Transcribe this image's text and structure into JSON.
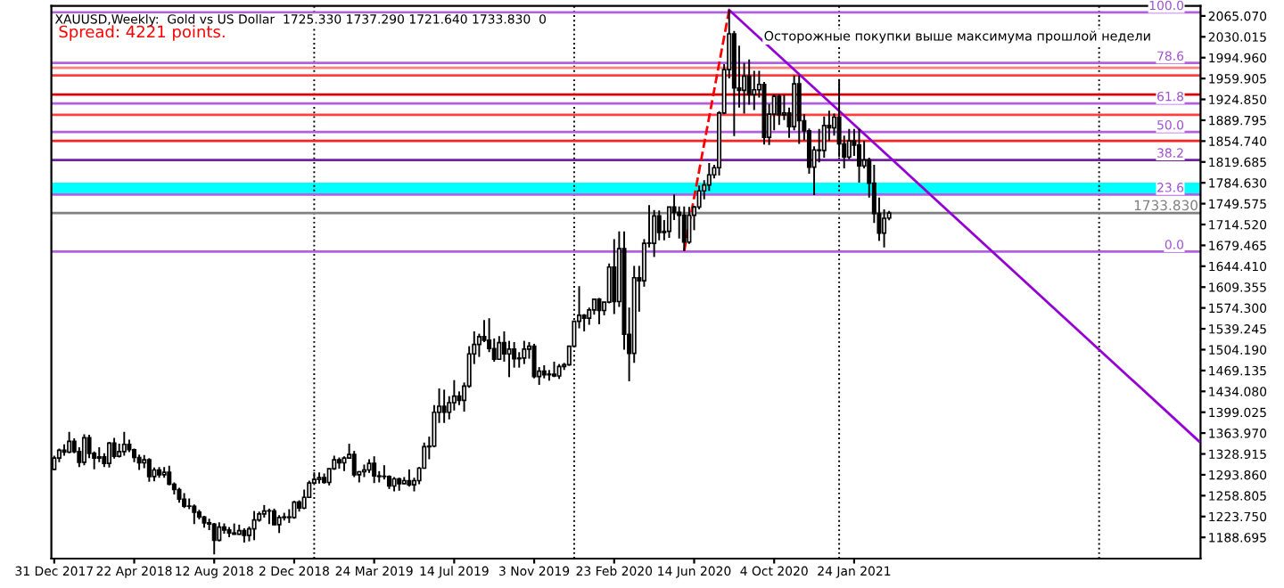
{
  "chart_data": {
    "type": "candlestick",
    "title": "XAUUSD,Weekly:  Gold vs US Dollar  1725.330 1737.290 1721.640 1733.830  0",
    "annotations": [
      "Spread: 4221 points.",
      "Осторожные покупки выше максимума прошлой недели",
      {
        "text": "100.0",
        "x": "2022-05-01",
        "y": 2071
      },
      {
        "text": "78.6",
        "x": "2022-05-01",
        "y": 1986
      },
      {
        "text": "61.8",
        "x": "2022-05-01",
        "y": 1918
      },
      {
        "text": "50.0",
        "x": "2022-05-01",
        "y": 1870
      },
      {
        "text": "38.2",
        "x": "2022-05-01",
        "y": 1823
      },
      {
        "text": "23.6",
        "x": "2022-05-01",
        "y": 1765
      },
      {
        "text": "0.0",
        "x": "2022-05-01",
        "y": 1669
      }
    ],
    "x": [
      "2017-12-31",
      "2018-01-07",
      "2018-01-14",
      "2018-01-21",
      "2018-01-28",
      "2018-02-04",
      "2018-02-11",
      "2018-02-18",
      "2018-02-25",
      "2018-03-04",
      "2018-03-11",
      "2018-03-18",
      "2018-03-25",
      "2018-04-01",
      "2018-04-08",
      "2018-04-15",
      "2018-04-22",
      "2018-04-29",
      "2018-05-06",
      "2018-05-13",
      "2018-05-20",
      "2018-05-27",
      "2018-06-03",
      "2018-06-10",
      "2018-06-17",
      "2018-06-24",
      "2018-07-01",
      "2018-07-08",
      "2018-07-15",
      "2018-07-22",
      "2018-07-29",
      "2018-08-05",
      "2018-08-12",
      "2018-08-19",
      "2018-08-26",
      "2018-09-02",
      "2018-09-09",
      "2018-09-16",
      "2018-09-23",
      "2018-09-30",
      "2018-10-07",
      "2018-10-14",
      "2018-10-21",
      "2018-10-28",
      "2018-11-04",
      "2018-11-11",
      "2018-11-18",
      "2018-11-25",
      "2018-12-02",
      "2018-12-09",
      "2018-12-16",
      "2018-12-23",
      "2018-12-30",
      "2019-01-06",
      "2019-01-13",
      "2019-01-20",
      "2019-01-27",
      "2019-02-03",
      "2019-02-10",
      "2019-02-17",
      "2019-02-24",
      "2019-03-03",
      "2019-03-10",
      "2019-03-17",
      "2019-03-24",
      "2019-03-31",
      "2019-04-07",
      "2019-04-14",
      "2019-04-21",
      "2019-04-28",
      "2019-05-05",
      "2019-05-12",
      "2019-05-19",
      "2019-05-26",
      "2019-06-02",
      "2019-06-09",
      "2019-06-16",
      "2019-06-23",
      "2019-06-30",
      "2019-07-07",
      "2019-07-14",
      "2019-07-21",
      "2019-07-28",
      "2019-08-04",
      "2019-08-11",
      "2019-08-18",
      "2019-08-25",
      "2019-09-01",
      "2019-09-08",
      "2019-09-15",
      "2019-09-22",
      "2019-09-29",
      "2019-10-06",
      "2019-10-13",
      "2019-10-20",
      "2019-10-27",
      "2019-11-03",
      "2019-11-10",
      "2019-11-17",
      "2019-11-24",
      "2019-12-01",
      "2019-12-08",
      "2019-12-15",
      "2019-12-22",
      "2019-12-29",
      "2020-01-05",
      "2020-01-12",
      "2020-01-19",
      "2020-01-26",
      "2020-02-02",
      "2020-02-09",
      "2020-02-16",
      "2020-02-23",
      "2020-03-01",
      "2020-03-08",
      "2020-03-15",
      "2020-03-22",
      "2020-03-29",
      "2020-04-05",
      "2020-04-12",
      "2020-04-19",
      "2020-04-26",
      "2020-05-03",
      "2020-05-10",
      "2020-05-17",
      "2020-05-24",
      "2020-05-31",
      "2020-06-07",
      "2020-06-14",
      "2020-06-21",
      "2020-06-28",
      "2020-07-05",
      "2020-07-12",
      "2020-07-19",
      "2020-07-26",
      "2020-08-02",
      "2020-08-09",
      "2020-08-16",
      "2020-08-23",
      "2020-08-30",
      "2020-09-06",
      "2020-09-13",
      "2020-09-20",
      "2020-09-27",
      "2020-10-04",
      "2020-10-11",
      "2020-10-18",
      "2020-10-25",
      "2020-11-01",
      "2020-11-08",
      "2020-11-15",
      "2020-11-22",
      "2020-11-29",
      "2020-12-06",
      "2020-12-13",
      "2020-12-20",
      "2020-12-27",
      "2021-01-03",
      "2021-01-10",
      "2021-01-17",
      "2021-01-24",
      "2021-01-31",
      "2021-02-07",
      "2021-02-14",
      "2021-02-21",
      "2021-02-28",
      "2021-03-07",
      "2021-03-14"
    ],
    "ohlc": [
      [
        1303,
        1326,
        1302,
        1322
      ],
      [
        1322,
        1338,
        1315,
        1335
      ],
      [
        1335,
        1345,
        1326,
        1332
      ],
      [
        1332,
        1366,
        1330,
        1350
      ],
      [
        1350,
        1355,
        1330,
        1333
      ],
      [
        1333,
        1340,
        1307,
        1315
      ],
      [
        1315,
        1362,
        1310,
        1356
      ],
      [
        1356,
        1361,
        1322,
        1330
      ],
      [
        1330,
        1333,
        1303,
        1322
      ],
      [
        1322,
        1340,
        1315,
        1324
      ],
      [
        1324,
        1330,
        1307,
        1313
      ],
      [
        1313,
        1349,
        1306,
        1347
      ],
      [
        1347,
        1356,
        1321,
        1325
      ],
      [
        1325,
        1346,
        1323,
        1333
      ],
      [
        1333,
        1366,
        1326,
        1345
      ],
      [
        1345,
        1353,
        1332,
        1336
      ],
      [
        1336,
        1338,
        1315,
        1323
      ],
      [
        1323,
        1328,
        1302,
        1314
      ],
      [
        1314,
        1327,
        1305,
        1319
      ],
      [
        1319,
        1322,
        1282,
        1291
      ],
      [
        1291,
        1306,
        1283,
        1302
      ],
      [
        1302,
        1307,
        1289,
        1294
      ],
      [
        1294,
        1307,
        1289,
        1298
      ],
      [
        1298,
        1309,
        1276,
        1278
      ],
      [
        1278,
        1281,
        1261,
        1269
      ],
      [
        1269,
        1272,
        1247,
        1253
      ],
      [
        1253,
        1263,
        1238,
        1241
      ],
      [
        1241,
        1254,
        1236,
        1241
      ],
      [
        1241,
        1244,
        1211,
        1231
      ],
      [
        1231,
        1235,
        1219,
        1223
      ],
      [
        1223,
        1225,
        1205,
        1213
      ],
      [
        1213,
        1220,
        1201,
        1211
      ],
      [
        1211,
        1213,
        1160,
        1184
      ],
      [
        1184,
        1214,
        1182,
        1206
      ],
      [
        1206,
        1212,
        1195,
        1201
      ],
      [
        1201,
        1206,
        1189,
        1196
      ],
      [
        1196,
        1212,
        1193,
        1194
      ],
      [
        1194,
        1210,
        1193,
        1200
      ],
      [
        1200,
        1204,
        1180,
        1192
      ],
      [
        1192,
        1207,
        1182,
        1203
      ],
      [
        1203,
        1233,
        1184,
        1218
      ],
      [
        1218,
        1232,
        1215,
        1228
      ],
      [
        1228,
        1243,
        1222,
        1233
      ],
      [
        1233,
        1237,
        1211,
        1233
      ],
      [
        1233,
        1237,
        1209,
        1210
      ],
      [
        1210,
        1226,
        1196,
        1222
      ],
      [
        1222,
        1230,
        1217,
        1223
      ],
      [
        1223,
        1236,
        1213,
        1222
      ],
      [
        1222,
        1250,
        1220,
        1248
      ],
      [
        1248,
        1251,
        1232,
        1238
      ],
      [
        1238,
        1269,
        1236,
        1256
      ],
      [
        1256,
        1284,
        1256,
        1280
      ],
      [
        1280,
        1298,
        1279,
        1286
      ],
      [
        1286,
        1298,
        1279,
        1289
      ],
      [
        1289,
        1296,
        1279,
        1281
      ],
      [
        1281,
        1304,
        1276,
        1304
      ],
      [
        1304,
        1326,
        1302,
        1319
      ],
      [
        1319,
        1323,
        1304,
        1314
      ],
      [
        1314,
        1325,
        1300,
        1322
      ],
      [
        1322,
        1346,
        1321,
        1328
      ],
      [
        1328,
        1334,
        1290,
        1294
      ],
      [
        1294,
        1300,
        1281,
        1299
      ],
      [
        1299,
        1311,
        1290,
        1302
      ],
      [
        1302,
        1320,
        1297,
        1313
      ],
      [
        1313,
        1325,
        1280,
        1292
      ],
      [
        1292,
        1300,
        1281,
        1291
      ],
      [
        1291,
        1310,
        1286,
        1291
      ],
      [
        1291,
        1293,
        1270,
        1275
      ],
      [
        1275,
        1290,
        1266,
        1287
      ],
      [
        1287,
        1289,
        1267,
        1279
      ],
      [
        1279,
        1290,
        1278,
        1284
      ],
      [
        1284,
        1303,
        1274,
        1277
      ],
      [
        1277,
        1289,
        1266,
        1284
      ],
      [
        1284,
        1307,
        1278,
        1305
      ],
      [
        1305,
        1348,
        1304,
        1341
      ],
      [
        1341,
        1358,
        1320,
        1342
      ],
      [
        1342,
        1411,
        1340,
        1399
      ],
      [
        1399,
        1439,
        1381,
        1409
      ],
      [
        1409,
        1437,
        1381,
        1399
      ],
      [
        1399,
        1426,
        1387,
        1415
      ],
      [
        1415,
        1453,
        1402,
        1426
      ],
      [
        1426,
        1434,
        1411,
        1419
      ],
      [
        1419,
        1449,
        1400,
        1443
      ],
      [
        1443,
        1510,
        1440,
        1497
      ],
      [
        1497,
        1535,
        1480,
        1513
      ],
      [
        1513,
        1531,
        1492,
        1526
      ],
      [
        1526,
        1554,
        1517,
        1520
      ],
      [
        1520,
        1557,
        1500,
        1506
      ],
      [
        1506,
        1523,
        1484,
        1488
      ],
      [
        1488,
        1527,
        1487,
        1516
      ],
      [
        1516,
        1535,
        1484,
        1497
      ],
      [
        1497,
        1519,
        1458,
        1505
      ],
      [
        1505,
        1517,
        1474,
        1489
      ],
      [
        1489,
        1500,
        1474,
        1490
      ],
      [
        1490,
        1519,
        1480,
        1505
      ],
      [
        1505,
        1517,
        1489,
        1510
      ],
      [
        1510,
        1514,
        1456,
        1459
      ],
      [
        1459,
        1475,
        1445,
        1468
      ],
      [
        1468,
        1478,
        1456,
        1462
      ],
      [
        1462,
        1470,
        1452,
        1463
      ],
      [
        1463,
        1484,
        1458,
        1460
      ],
      [
        1460,
        1480,
        1455,
        1476
      ],
      [
        1476,
        1482,
        1470,
        1479
      ],
      [
        1479,
        1511,
        1477,
        1510
      ],
      [
        1510,
        1553,
        1508,
        1552
      ],
      [
        1552,
        1611,
        1540,
        1562
      ],
      [
        1562,
        1564,
        1535,
        1557
      ],
      [
        1557,
        1575,
        1546,
        1571
      ],
      [
        1571,
        1590,
        1563,
        1589
      ],
      [
        1589,
        1591,
        1547,
        1570
      ],
      [
        1570,
        1584,
        1562,
        1584
      ],
      [
        1584,
        1649,
        1582,
        1643
      ],
      [
        1643,
        1690,
        1564,
        1585
      ],
      [
        1585,
        1703,
        1576,
        1674
      ],
      [
        1674,
        1703,
        1504,
        1530
      ],
      [
        1530,
        1575,
        1451,
        1498
      ],
      [
        1498,
        1645,
        1482,
        1625
      ],
      [
        1625,
        1645,
        1568,
        1620
      ],
      [
        1620,
        1690,
        1610,
        1683
      ],
      [
        1683,
        1747,
        1676,
        1683
      ],
      [
        1683,
        1739,
        1660,
        1729
      ],
      [
        1729,
        1738,
        1688,
        1701
      ],
      [
        1701,
        1722,
        1688,
        1703
      ],
      [
        1703,
        1744,
        1692,
        1744
      ],
      [
        1744,
        1765,
        1722,
        1735
      ],
      [
        1735,
        1745,
        1691,
        1730
      ],
      [
        1730,
        1745,
        1670,
        1685
      ],
      [
        1685,
        1744,
        1682,
        1730
      ],
      [
        1730,
        1746,
        1705,
        1744
      ],
      [
        1744,
        1780,
        1740,
        1771
      ],
      [
        1771,
        1789,
        1757,
        1781
      ],
      [
        1781,
        1818,
        1771,
        1798
      ],
      [
        1798,
        1815,
        1792,
        1810
      ],
      [
        1810,
        1905,
        1797,
        1902
      ],
      [
        1902,
        1984,
        1900,
        1975
      ],
      [
        1975,
        2075,
        1960,
        2035
      ],
      [
        2035,
        2040,
        1863,
        1944
      ],
      [
        1944,
        2015,
        1911,
        1940
      ],
      [
        1940,
        1986,
        1901,
        1964
      ],
      [
        1964,
        1992,
        1916,
        1933
      ],
      [
        1933,
        1973,
        1907,
        1941
      ],
      [
        1941,
        1973,
        1928,
        1950
      ],
      [
        1950,
        1954,
        1849,
        1861
      ],
      [
        1861,
        1917,
        1848,
        1900
      ],
      [
        1900,
        1933,
        1873,
        1930
      ],
      [
        1930,
        1933,
        1882,
        1899
      ],
      [
        1899,
        1932,
        1890,
        1902
      ],
      [
        1902,
        1911,
        1860,
        1879
      ],
      [
        1879,
        1965,
        1873,
        1951
      ],
      [
        1951,
        1965,
        1850,
        1889
      ],
      [
        1889,
        1900,
        1856,
        1872
      ],
      [
        1872,
        1876,
        1800,
        1811
      ],
      [
        1811,
        1846,
        1764,
        1840
      ],
      [
        1840,
        1875,
        1819,
        1839
      ],
      [
        1839,
        1896,
        1827,
        1881
      ],
      [
        1881,
        1906,
        1855,
        1877
      ],
      [
        1877,
        1901,
        1864,
        1895
      ],
      [
        1895,
        1959,
        1828,
        1850
      ],
      [
        1850,
        1864,
        1809,
        1828
      ],
      [
        1828,
        1875,
        1824,
        1855
      ],
      [
        1855,
        1875,
        1830,
        1848
      ],
      [
        1848,
        1875,
        1785,
        1813
      ],
      [
        1813,
        1855,
        1809,
        1823
      ],
      [
        1823,
        1827,
        1760,
        1784
      ],
      [
        1784,
        1815,
        1717,
        1733
      ],
      [
        1733,
        1760,
        1687,
        1700
      ],
      [
        1700,
        1740,
        1676,
        1725
      ],
      [
        1725.33,
        1737.29,
        1721.64,
        1733.83
      ]
    ],
    "series": [
      {
        "type": "line",
        "color": "#9400d3",
        "x": [
          "2020-08-02",
          "2022-05-22"
        ],
        "values": [
          2075,
          1350
        ]
      },
      {
        "type": "line",
        "color": "#ff0000",
        "line_style": "dashed",
        "x": [
          "2020-05-31",
          "2020-08-02"
        ],
        "values": [
          1670,
          2075
        ]
      }
    ],
    "xlim": [
      "2017-12-27",
      "2022-05-24"
    ],
    "xticks": [
      {
        "value": "2017-12-31",
        "label": "31 Dec 2017"
      },
      {
        "value": "2018-04-22",
        "label": "22 Apr 2018"
      },
      {
        "value": "2018-08-12",
        "label": "12 Aug 2018"
      },
      {
        "value": "2018-12-02",
        "label": "2 Dec 2018"
      },
      {
        "value": "2019-03-24",
        "label": "24 Mar 2019"
      },
      {
        "value": "2019-07-14",
        "label": "14 Jul 2019"
      },
      {
        "value": "2019-11-03",
        "label": "3 Nov 2019"
      },
      {
        "value": "2020-02-23",
        "label": "23 Feb 2020"
      },
      {
        "value": "2020-06-14",
        "label": "14 Jun 2020"
      },
      {
        "value": "2020-10-04",
        "label": "4 Oct 2020"
      },
      {
        "value": "2021-01-24",
        "label": "24 Jan 2021"
      }
    ],
    "ylim": [
      1153,
      2082
    ],
    "yticks": [
      {
        "value": 2065.07,
        "label": "2065.070"
      },
      {
        "value": 2030.015,
        "label": "2030.015"
      },
      {
        "value": 1994.96,
        "label": "1994.960"
      },
      {
        "value": 1959.905,
        "label": "1959.905"
      },
      {
        "value": 1924.85,
        "label": "1924.850"
      },
      {
        "value": 1889.795,
        "label": "1889.795"
      },
      {
        "value": 1854.74,
        "label": "1854.740"
      },
      {
        "value": 1819.685,
        "label": "1819.685"
      },
      {
        "value": 1784.63,
        "label": "1784.630"
      },
      {
        "value": 1749.575,
        "label": "1749.575"
      },
      {
        "value": 1714.52,
        "label": "1714.520"
      },
      {
        "value": 1679.465,
        "label": "1679.465"
      },
      {
        "value": 1644.41,
        "label": "1644.410"
      },
      {
        "value": 1609.355,
        "label": "1609.355"
      },
      {
        "value": 1574.3,
        "label": "1574.300"
      },
      {
        "value": 1539.245,
        "label": "1539.245"
      },
      {
        "value": 1504.19,
        "label": "1504.190"
      },
      {
        "value": 1469.135,
        "label": "1469.135"
      },
      {
        "value": 1434.08,
        "label": "1434.080"
      },
      {
        "value": 1399.025,
        "label": "1399.025"
      },
      {
        "value": 1363.97,
        "label": "1363.970"
      },
      {
        "value": 1328.915,
        "label": "1328.915"
      },
      {
        "value": 1293.86,
        "label": "1293.860"
      },
      {
        "value": 1258.805,
        "label": "1258.805"
      },
      {
        "value": 1223.75,
        "label": "1223.750"
      },
      {
        "value": 1188.695,
        "label": "1188.695"
      }
    ],
    "bands": [
      {
        "axis": "y",
        "from": 1765,
        "to": 1785,
        "color": "#00ffff"
      }
    ],
    "ref_lines": [
      {
        "axis": "x",
        "value": "2018-12-30",
        "color": "#000000",
        "line_style": "dotted"
      },
      {
        "axis": "x",
        "value": "2019-12-29",
        "color": "#000000",
        "line_style": "dotted"
      },
      {
        "axis": "x",
        "value": "2021-01-03",
        "color": "#000000",
        "line_style": "dotted"
      },
      {
        "axis": "x",
        "value": "2022-01-02",
        "color": "#000000",
        "line_style": "dotted"
      },
      {
        "axis": "y",
        "value": 1978,
        "color": "#ff8080",
        "line_style": "solid"
      },
      {
        "axis": "y",
        "value": 1965,
        "color": "#ff4040",
        "line_style": "solid"
      },
      {
        "axis": "y",
        "value": 1933,
        "color": "#e00000",
        "line_style": "solid"
      },
      {
        "axis": "y",
        "value": 1899,
        "color": "#ff4040",
        "line_style": "solid"
      },
      {
        "axis": "y",
        "value": 1855,
        "color": "#ff2020",
        "line_style": "solid"
      },
      {
        "axis": "y",
        "value": 1733.83,
        "label": "1733.830",
        "color": "#808080",
        "line_style": "solid"
      },
      {
        "axis": "y",
        "value": 2071,
        "color": "#b060e0",
        "line_style": "solid"
      },
      {
        "axis": "y",
        "value": 1986,
        "color": "#b060e0",
        "line_style": "solid"
      },
      {
        "axis": "y",
        "value": 1918,
        "color": "#b060e0",
        "line_style": "solid"
      },
      {
        "axis": "y",
        "value": 1870,
        "color": "#b060e0",
        "line_style": "solid"
      },
      {
        "axis": "y",
        "value": 1823,
        "color": "#7020a0",
        "line_style": "solid"
      },
      {
        "axis": "y",
        "value": 1765,
        "color": "#b060e0",
        "line_style": "solid"
      },
      {
        "axis": "y",
        "value": 1669,
        "color": "#b060e0",
        "line_style": "solid"
      }
    ]
  }
}
